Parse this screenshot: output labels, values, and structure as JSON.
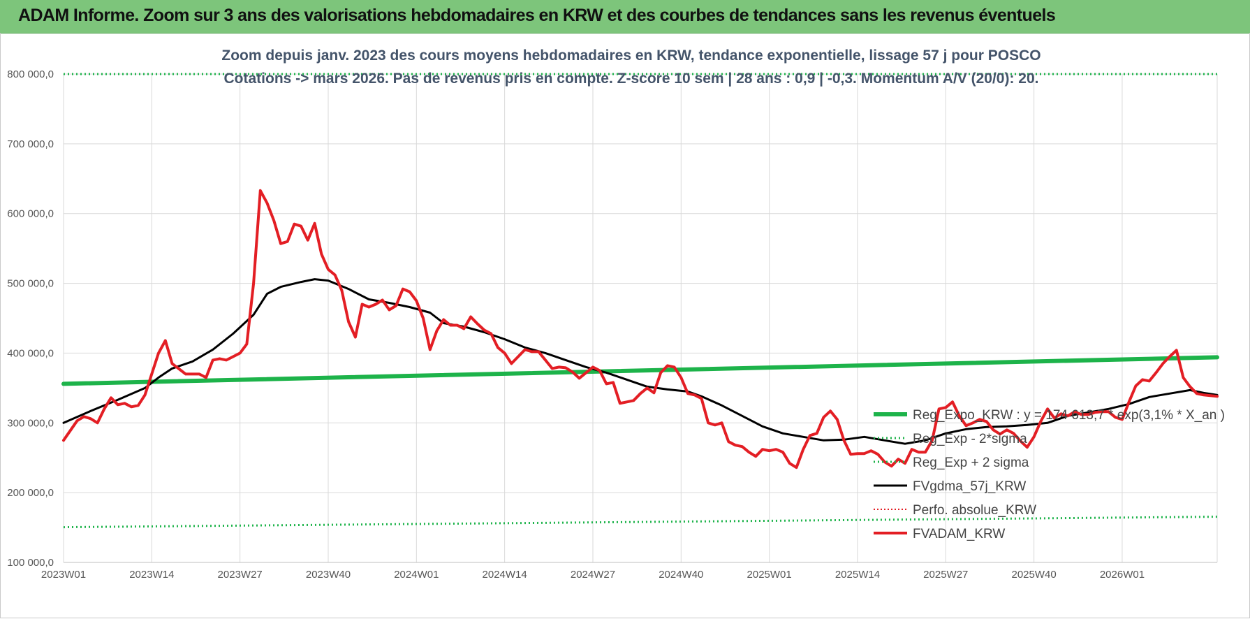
{
  "banner": {
    "title": "ADAM Informe. Zoom sur 3 ans des valorisations hebdomadaires en KRW et des courbes de tendances sans les revenus éventuels",
    "color": "#7dc57b"
  },
  "chart_data": {
    "type": "line",
    "title_lines": [
      "Zoom depuis janv. 2023 des cours moyens hebdomadaires en KRW, tendance exponentielle, lissage 57 j pour POSCO",
      "Cotations -> mars 2026. Pas de revenus pris en compte. Z-score 10 sem | 28 ans : 0,9 | -0,3. Momentum A/V (20/0): 20."
    ],
    "xlabel": "",
    "ylabel": "",
    "ylim": [
      100000,
      800000
    ],
    "grid": true,
    "yticks": [
      {
        "value": 100000,
        "label": "100 000,0"
      },
      {
        "value": 200000,
        "label": "200 000,0"
      },
      {
        "value": 300000,
        "label": "300 000,0"
      },
      {
        "value": 400000,
        "label": "400 000,0"
      },
      {
        "value": 500000,
        "label": "500 000,0"
      },
      {
        "value": 600000,
        "label": "600 000,0"
      },
      {
        "value": 700000,
        "label": "700 000,0"
      },
      {
        "value": 800000,
        "label": "800 000,0"
      }
    ],
    "xticks": [
      {
        "index": 0,
        "label": "2023W01"
      },
      {
        "index": 13,
        "label": "2023W14"
      },
      {
        "index": 26,
        "label": "2023W27"
      },
      {
        "index": 39,
        "label": "2023W40"
      },
      {
        "index": 52,
        "label": "2024W01"
      },
      {
        "index": 65,
        "label": "2024W14"
      },
      {
        "index": 78,
        "label": "2024W27"
      },
      {
        "index": 91,
        "label": "2024W40"
      },
      {
        "index": 104,
        "label": "2025W01"
      },
      {
        "index": 117,
        "label": "2025W14"
      },
      {
        "index": 130,
        "label": "2025W27"
      },
      {
        "index": 143,
        "label": "2025W40"
      },
      {
        "index": 156,
        "label": "2026W01"
      }
    ],
    "x_count": 171,
    "legend": {
      "position": "bottom-right",
      "entries": [
        {
          "label": "Reg_Expo_KRW : y = 174 613,7 * exp(3,1% * X_an )",
          "series": "reg_expo"
        },
        {
          "label": "Reg_Exp - 2*sigma",
          "series": "reg_minus"
        },
        {
          "label": "Reg_Exp + 2 sigma",
          "series": "reg_plus"
        },
        {
          "label": "FVgdma_57j_KRW",
          "series": "fvgdma"
        },
        {
          "label": "Perfo. absolue_KRW",
          "series": "perfo"
        },
        {
          "label": "FVADAM_KRW",
          "series": "fvadam"
        }
      ]
    },
    "series": [
      {
        "name": "Reg_Expo_KRW : y = 174 613,7 * exp(3,1% * X_an )",
        "key": "reg_expo",
        "color": "#1db34a",
        "style": "solid",
        "width": 6,
        "points": [
          [
            0,
            356000
          ],
          [
            170,
            394000
          ]
        ]
      },
      {
        "name": "Reg_Exp - 2*sigma",
        "key": "reg_minus",
        "color": "#1db34a",
        "style": "dotted",
        "width": 3,
        "points": [
          [
            0,
            150500
          ],
          [
            170,
            165500
          ]
        ]
      },
      {
        "name": "Reg_Exp + 2 sigma",
        "key": "reg_plus",
        "color": "#1db34a",
        "style": "dotted",
        "width": 3,
        "points": [
          [
            0,
            800000
          ],
          [
            170,
            800000
          ]
        ]
      },
      {
        "name": "FVgdma_57j_KRW",
        "key": "fvgdma",
        "color": "#000000",
        "style": "solid",
        "width": 3,
        "points": [
          [
            0,
            300000
          ],
          [
            4,
            317000
          ],
          [
            8,
            333000
          ],
          [
            12,
            350000
          ],
          [
            14,
            365000
          ],
          [
            16,
            378000
          ],
          [
            19,
            388000
          ],
          [
            22,
            405000
          ],
          [
            25,
            428000
          ],
          [
            28,
            455000
          ],
          [
            30,
            485000
          ],
          [
            32,
            495000
          ],
          [
            35,
            502000
          ],
          [
            37,
            506000
          ],
          [
            39,
            504000
          ],
          [
            42,
            492000
          ],
          [
            45,
            477000
          ],
          [
            48,
            472000
          ],
          [
            51,
            466000
          ],
          [
            54,
            458000
          ],
          [
            56,
            443000
          ],
          [
            59,
            438000
          ],
          [
            62,
            430000
          ],
          [
            65,
            420000
          ],
          [
            68,
            408000
          ],
          [
            71,
            400000
          ],
          [
            74,
            390000
          ],
          [
            77,
            380000
          ],
          [
            80,
            372000
          ],
          [
            83,
            362000
          ],
          [
            86,
            352000
          ],
          [
            89,
            348000
          ],
          [
            92,
            345000
          ],
          [
            94,
            338000
          ],
          [
            97,
            325000
          ],
          [
            100,
            310000
          ],
          [
            103,
            295000
          ],
          [
            106,
            285000
          ],
          [
            109,
            280000
          ],
          [
            112,
            275000
          ],
          [
            115,
            276000
          ],
          [
            118,
            280000
          ],
          [
            121,
            275000
          ],
          [
            124,
            270000
          ],
          [
            127,
            275000
          ],
          [
            130,
            285000
          ],
          [
            133,
            291000
          ],
          [
            136,
            294000
          ],
          [
            139,
            295000
          ],
          [
            142,
            297000
          ],
          [
            145,
            300000
          ],
          [
            148,
            310000
          ],
          [
            151,
            315000
          ],
          [
            154,
            320000
          ],
          [
            157,
            327000
          ],
          [
            160,
            337000
          ],
          [
            163,
            342000
          ],
          [
            166,
            347000
          ],
          [
            168,
            343000
          ],
          [
            170,
            340000
          ]
        ]
      },
      {
        "name": "Perfo. absolue_KRW",
        "key": "perfo",
        "color": "#e31e24",
        "style": "dotted",
        "width": 2,
        "points": []
      },
      {
        "name": "FVADAM_KRW",
        "key": "fvadam",
        "color": "#e31e24",
        "style": "solid",
        "width": 4,
        "points": [
          [
            0,
            275000
          ],
          [
            2,
            303000
          ],
          [
            3,
            309000
          ],
          [
            4,
            306000
          ],
          [
            5,
            300000
          ],
          [
            6,
            320000
          ],
          [
            7,
            336000
          ],
          [
            8,
            326000
          ],
          [
            9,
            328000
          ],
          [
            10,
            323000
          ],
          [
            11,
            325000
          ],
          [
            12,
            340000
          ],
          [
            14,
            400000
          ],
          [
            15,
            418000
          ],
          [
            16,
            385000
          ],
          [
            18,
            370000
          ],
          [
            20,
            370000
          ],
          [
            21,
            365000
          ],
          [
            22,
            390000
          ],
          [
            23,
            392000
          ],
          [
            24,
            390000
          ],
          [
            26,
            400000
          ],
          [
            27,
            413000
          ],
          [
            28,
            500000
          ],
          [
            29,
            633000
          ],
          [
            30,
            615000
          ],
          [
            31,
            590000
          ],
          [
            32,
            557000
          ],
          [
            33,
            560000
          ],
          [
            34,
            585000
          ],
          [
            35,
            582000
          ],
          [
            36,
            562000
          ],
          [
            37,
            586000
          ],
          [
            38,
            542000
          ],
          [
            39,
            520000
          ],
          [
            40,
            512000
          ],
          [
            41,
            490000
          ],
          [
            42,
            445000
          ],
          [
            43,
            423000
          ],
          [
            44,
            470000
          ],
          [
            45,
            466000
          ],
          [
            46,
            470000
          ],
          [
            47,
            476000
          ],
          [
            48,
            462000
          ],
          [
            49,
            468000
          ],
          [
            50,
            492000
          ],
          [
            51,
            488000
          ],
          [
            52,
            475000
          ],
          [
            53,
            450000
          ],
          [
            54,
            405000
          ],
          [
            55,
            432000
          ],
          [
            56,
            448000
          ],
          [
            57,
            440000
          ],
          [
            58,
            440000
          ],
          [
            59,
            435000
          ],
          [
            60,
            452000
          ],
          [
            61,
            442000
          ],
          [
            62,
            433000
          ],
          [
            63,
            428000
          ],
          [
            64,
            408000
          ],
          [
            65,
            400000
          ],
          [
            66,
            385000
          ],
          [
            67,
            395000
          ],
          [
            68,
            405000
          ],
          [
            69,
            402000
          ],
          [
            70,
            402000
          ],
          [
            71,
            390000
          ],
          [
            72,
            378000
          ],
          [
            73,
            380000
          ],
          [
            74,
            379000
          ],
          [
            75,
            373000
          ],
          [
            76,
            364000
          ],
          [
            77,
            372000
          ],
          [
            78,
            380000
          ],
          [
            79,
            375000
          ],
          [
            80,
            356000
          ],
          [
            81,
            358000
          ],
          [
            82,
            328000
          ],
          [
            83,
            330000
          ],
          [
            84,
            332000
          ],
          [
            85,
            342000
          ],
          [
            86,
            350000
          ],
          [
            87,
            343000
          ],
          [
            88,
            372000
          ],
          [
            89,
            382000
          ],
          [
            90,
            380000
          ],
          [
            91,
            365000
          ],
          [
            92,
            342000
          ],
          [
            93,
            340000
          ],
          [
            94,
            335000
          ],
          [
            95,
            300000
          ],
          [
            96,
            297000
          ],
          [
            97,
            300000
          ],
          [
            98,
            273000
          ],
          [
            99,
            268000
          ],
          [
            100,
            266000
          ],
          [
            101,
            258000
          ],
          [
            102,
            252000
          ],
          [
            103,
            262000
          ],
          [
            104,
            260000
          ],
          [
            105,
            262000
          ],
          [
            106,
            258000
          ],
          [
            107,
            242000
          ],
          [
            108,
            236000
          ],
          [
            109,
            262000
          ],
          [
            110,
            282000
          ],
          [
            111,
            285000
          ],
          [
            112,
            308000
          ],
          [
            113,
            317000
          ],
          [
            114,
            305000
          ],
          [
            115,
            275000
          ],
          [
            116,
            255000
          ],
          [
            117,
            256000
          ],
          [
            118,
            256000
          ],
          [
            119,
            260000
          ],
          [
            120,
            255000
          ],
          [
            121,
            244000
          ],
          [
            122,
            238000
          ],
          [
            123,
            248000
          ],
          [
            124,
            242000
          ],
          [
            125,
            262000
          ],
          [
            126,
            258000
          ],
          [
            127,
            258000
          ],
          [
            128,
            275000
          ],
          [
            129,
            320000
          ],
          [
            130,
            322000
          ],
          [
            131,
            330000
          ],
          [
            132,
            310000
          ],
          [
            133,
            296000
          ],
          [
            134,
            300000
          ],
          [
            135,
            305000
          ],
          [
            136,
            302000
          ],
          [
            137,
            290000
          ],
          [
            138,
            284000
          ],
          [
            139,
            290000
          ],
          [
            140,
            285000
          ],
          [
            141,
            274000
          ],
          [
            142,
            265000
          ],
          [
            143,
            280000
          ],
          [
            144,
            302000
          ],
          [
            145,
            320000
          ],
          [
            146,
            307000
          ],
          [
            147,
            313000
          ],
          [
            148,
            310000
          ],
          [
            149,
            316000
          ],
          [
            150,
            312000
          ],
          [
            151,
            312000
          ],
          [
            152,
            315000
          ],
          [
            153,
            316000
          ],
          [
            154,
            316000
          ],
          [
            155,
            308000
          ],
          [
            156,
            305000
          ],
          [
            157,
            330000
          ],
          [
            158,
            353000
          ],
          [
            159,
            362000
          ],
          [
            160,
            360000
          ],
          [
            161,
            372000
          ],
          [
            162,
            385000
          ],
          [
            163,
            395000
          ],
          [
            164,
            404000
          ],
          [
            165,
            365000
          ],
          [
            166,
            352000
          ],
          [
            167,
            342000
          ],
          [
            168,
            340000
          ],
          [
            170,
            338000
          ]
        ]
      }
    ]
  }
}
